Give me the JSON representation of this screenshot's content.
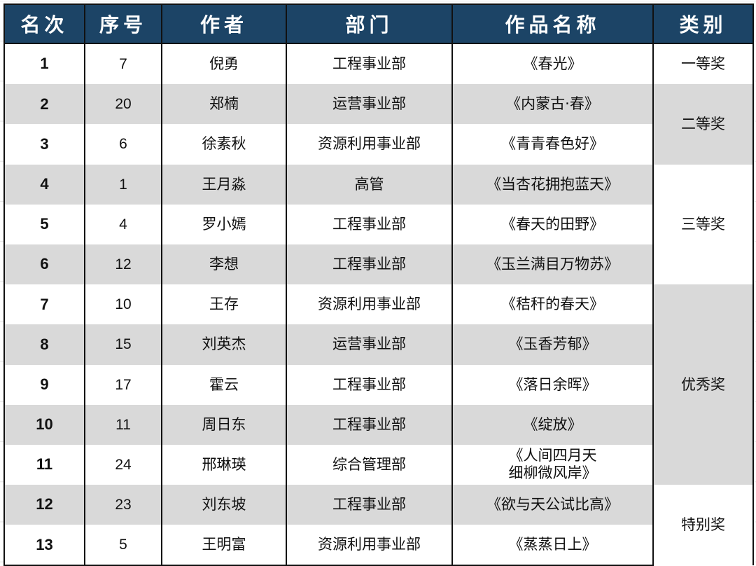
{
  "headers": [
    "名次",
    "序号",
    "作者",
    "部门",
    "作品名称",
    "类别"
  ],
  "rows": [
    {
      "rank": "1",
      "seq": "7",
      "author": "倪勇",
      "dept": "工程事业部",
      "work": "《春光》"
    },
    {
      "rank": "2",
      "seq": "20",
      "author": "郑楠",
      "dept": "运营事业部",
      "work": "《内蒙古·春》"
    },
    {
      "rank": "3",
      "seq": "6",
      "author": "徐素秋",
      "dept": "资源利用事业部",
      "work": "《青青春色好》"
    },
    {
      "rank": "4",
      "seq": "1",
      "author": "王月淼",
      "dept": "高管",
      "work": "《当杏花拥抱蓝天》"
    },
    {
      "rank": "5",
      "seq": "4",
      "author": "罗小嫣",
      "dept": "工程事业部",
      "work": "《春天的田野》"
    },
    {
      "rank": "6",
      "seq": "12",
      "author": "李想",
      "dept": "工程事业部",
      "work": "《玉兰满目万物苏》"
    },
    {
      "rank": "7",
      "seq": "10",
      "author": "王存",
      "dept": "资源利用事业部",
      "work": "《秸秆的春天》"
    },
    {
      "rank": "8",
      "seq": "15",
      "author": "刘英杰",
      "dept": "运营事业部",
      "work": "《玉香芳郁》"
    },
    {
      "rank": "9",
      "seq": "17",
      "author": "霍云",
      "dept": "工程事业部",
      "work": "《落日余晖》"
    },
    {
      "rank": "10",
      "seq": "11",
      "author": "周日东",
      "dept": "工程事业部",
      "work": "《绽放》"
    },
    {
      "rank": "11",
      "seq": "24",
      "author": "邢琳瑛",
      "dept": "综合管理部",
      "work": "《人间四月天\n细柳微风岸》"
    },
    {
      "rank": "12",
      "seq": "23",
      "author": "刘东坡",
      "dept": "工程事业部",
      "work": "《欲与天公试比高》"
    },
    {
      "rank": "13",
      "seq": "5",
      "author": "王明富",
      "dept": "资源利用事业部",
      "work": "《蒸蒸日上》"
    }
  ],
  "categories": [
    {
      "label": "一等奖",
      "span": 1,
      "shaded": false
    },
    {
      "label": "二等奖",
      "span": 2,
      "shaded": true
    },
    {
      "label": "三等奖",
      "span": 3,
      "shaded": false
    },
    {
      "label": "优秀奖",
      "span": 5,
      "shaded": true
    },
    {
      "label": "特别奖",
      "span": 2,
      "shaded": false
    }
  ],
  "colors": {
    "header_bg": "#1c4466",
    "header_text": "#ffffff",
    "row_shade": "#d9d9d9"
  }
}
